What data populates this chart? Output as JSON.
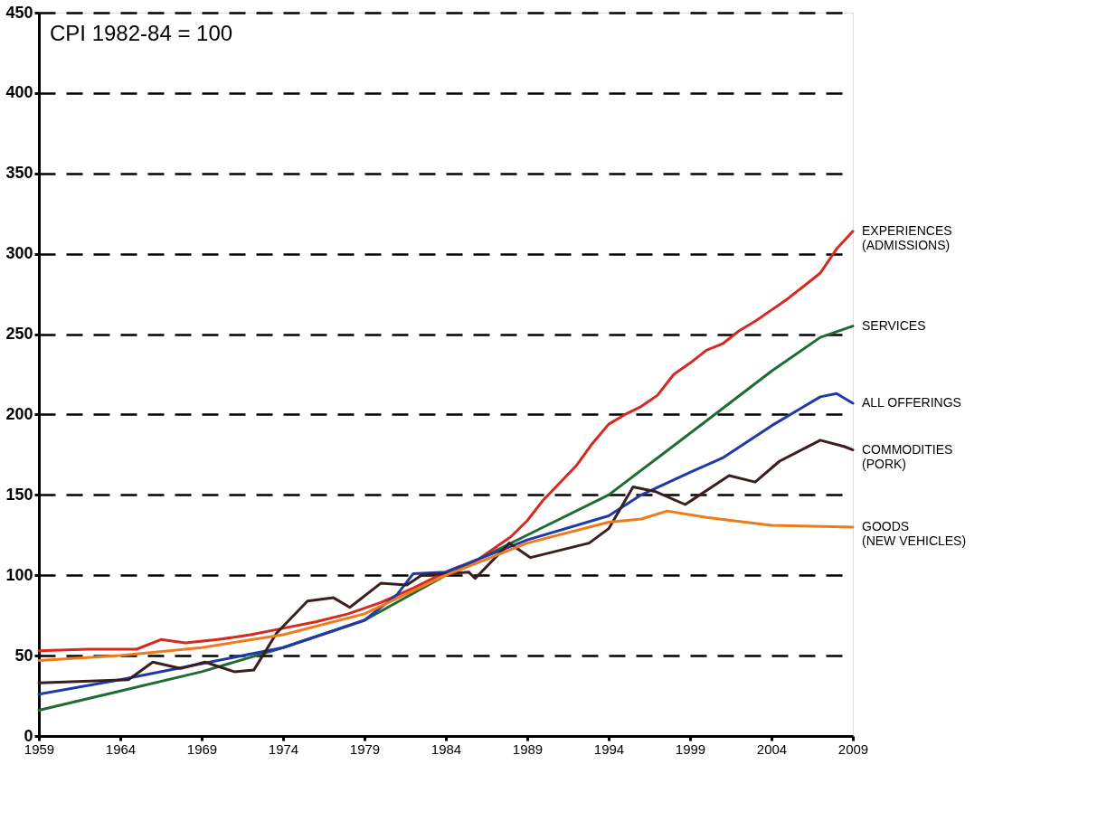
{
  "chart_data": {
    "type": "line",
    "annotations": [
      "CPI 1982-84 = 100"
    ],
    "xlim": [
      1959,
      2009
    ],
    "xticks": [
      1959,
      1964,
      1969,
      1974,
      1979,
      1984,
      1989,
      1994,
      1999,
      2004,
      2009
    ],
    "ylim": [
      0,
      450
    ],
    "yticks": [
      0,
      50,
      100,
      150,
      200,
      250,
      300,
      350,
      400,
      450
    ],
    "grid": "y",
    "line_style": "solid",
    "series": [
      {
        "name": "EXPERIENCES\n(ADMISSIONS)",
        "color": "#d42a1f",
        "x": [
          1959,
          1962,
          1965,
          1966.5,
          1968,
          1970,
          1972,
          1974,
          1976,
          1978,
          1980,
          1982,
          1984,
          1986,
          1988,
          1989,
          1990,
          1992,
          1993,
          1994,
          1995,
          1996,
          1997,
          1998,
          1999,
          2000,
          2001,
          2002,
          2003,
          2004,
          2005,
          2006,
          2007,
          2008,
          2009
        ],
        "values": [
          53,
          54,
          54,
          60,
          58,
          60,
          63,
          67,
          71,
          76,
          83,
          92,
          102,
          110,
          124,
          134,
          147,
          168,
          182,
          194,
          200,
          205,
          212,
          225,
          232,
          240,
          244,
          252,
          258,
          265,
          272,
          280,
          288,
          303,
          314
        ]
      },
      {
        "name": "SERVICES",
        "color": "#1f6b35",
        "x": [
          1959,
          1964,
          1969,
          1974,
          1979,
          1984,
          1989,
          1994,
          1997,
          2000,
          2004,
          2007,
          2009
        ],
        "values": [
          16,
          28,
          40,
          55,
          72,
          100,
          125,
          150,
          173,
          196,
          227,
          248,
          255
        ]
      },
      {
        "name": "ALL OFFERINGS",
        "color": "#1f3aa6",
        "x": [
          1959,
          1964,
          1969,
          1974,
          1979,
          1981,
          1982,
          1984,
          1989,
          1994,
          1996,
          1999,
          2001,
          2004,
          2006,
          2007,
          2008,
          2009
        ],
        "values": [
          26,
          35,
          45,
          55,
          72,
          88,
          101,
          102,
          122,
          137,
          150,
          164,
          173,
          193,
          205,
          211,
          213,
          207
        ]
      },
      {
        "name": "COMMODITIES\n(PORK)",
        "color": "#3b1f1f",
        "x": [
          1959,
          1964.5,
          1966,
          1967.7,
          1969.2,
          1971,
          1972.2,
          1973.6,
          1975.5,
          1977.1,
          1978.1,
          1980,
          1981.6,
          1982.5,
          1984,
          1985.4,
          1985.8,
          1987.9,
          1989.2,
          1992.8,
          1994,
          1995.5,
          1996.9,
          1998.7,
          2001.4,
          2003,
          2004.5,
          2007,
          2008.5,
          2009
        ],
        "values": [
          33,
          35,
          46,
          42,
          46,
          40,
          41,
          64,
          84,
          86,
          80,
          95,
          94,
          100,
          101,
          102,
          98,
          120,
          111,
          120,
          129,
          155,
          152,
          144,
          162,
          158,
          171,
          184,
          180,
          178
        ]
      },
      {
        "name": "GOODS\n(NEW VEHICLES)",
        "color": "#f07a1a",
        "x": [
          1959,
          1964,
          1969,
          1974,
          1979,
          1984,
          1989,
          1994,
          1996,
          1997.6,
          2000,
          2004,
          2009
        ],
        "values": [
          47,
          50,
          55,
          63,
          76,
          100,
          120,
          133,
          135,
          140,
          136,
          131,
          130
        ]
      }
    ]
  }
}
